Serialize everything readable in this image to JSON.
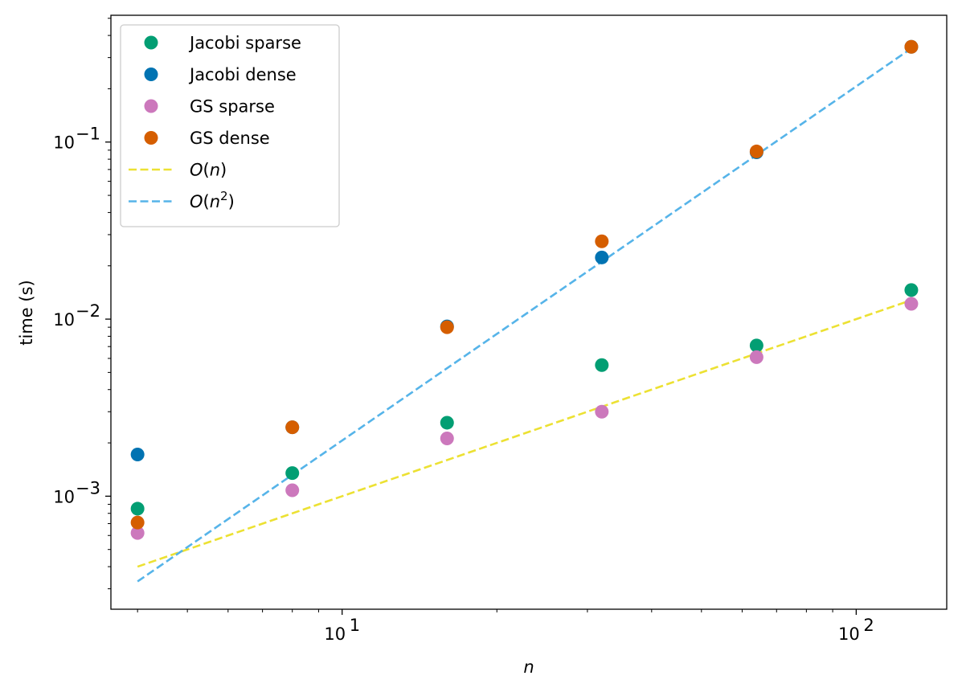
{
  "chart_data": {
    "type": "scatter",
    "xlabel": "n",
    "ylabel": "time (s)",
    "xscale": "log",
    "yscale": "log",
    "xlim": [
      3.55,
      150
    ],
    "ylim": [
      0.00023,
      0.52
    ],
    "grid": false,
    "legend_position": "top-left",
    "x_ticks": [
      {
        "value": 10,
        "base": "10",
        "exp": "1"
      },
      {
        "value": 100,
        "base": "10",
        "exp": "2"
      }
    ],
    "y_ticks": [
      {
        "value": 0.001,
        "base": "10",
        "exp": "−3"
      },
      {
        "value": 0.01,
        "base": "10",
        "exp": "−2"
      },
      {
        "value": 0.1,
        "base": "10",
        "exp": "−1"
      }
    ],
    "series": [
      {
        "name": "Jacobi sparse",
        "kind": "markers",
        "color": "#029e73",
        "x": [
          4,
          8,
          16,
          32,
          64,
          128
        ],
        "y": [
          0.00085,
          0.00135,
          0.0026,
          0.0055,
          0.0071,
          0.0146
        ]
      },
      {
        "name": "Jacobi dense",
        "kind": "markers",
        "color": "#0173b2",
        "x": [
          4,
          8,
          16,
          32,
          64,
          128
        ],
        "y": [
          0.00172,
          0.00245,
          0.0091,
          0.0223,
          0.0875,
          0.345
        ]
      },
      {
        "name": "GS sparse",
        "kind": "markers",
        "color": "#cc78bc",
        "x": [
          4,
          8,
          16,
          32,
          64,
          128
        ],
        "y": [
          0.00062,
          0.00108,
          0.00212,
          0.003,
          0.0061,
          0.0122
        ]
      },
      {
        "name": "GS dense",
        "kind": "markers",
        "color": "#d55e00",
        "x": [
          4,
          8,
          16,
          32,
          64,
          128
        ],
        "y": [
          0.00071,
          0.00245,
          0.009,
          0.0275,
          0.0885,
          0.345
        ]
      },
      {
        "name": "O(n)",
        "label_main": "O",
        "label_arg": "n",
        "label_sup": "",
        "kind": "dashed",
        "color": "#ece133",
        "x": [
          4,
          128
        ],
        "y": [
          0.0004,
          0.0128
        ]
      },
      {
        "name": "O(n2)",
        "label_main": "O",
        "label_arg": "n",
        "label_sup": "2",
        "kind": "dashed",
        "color": "#56b4e9",
        "x": [
          4,
          128
        ],
        "y": [
          0.00033,
          0.338
        ]
      }
    ]
  }
}
